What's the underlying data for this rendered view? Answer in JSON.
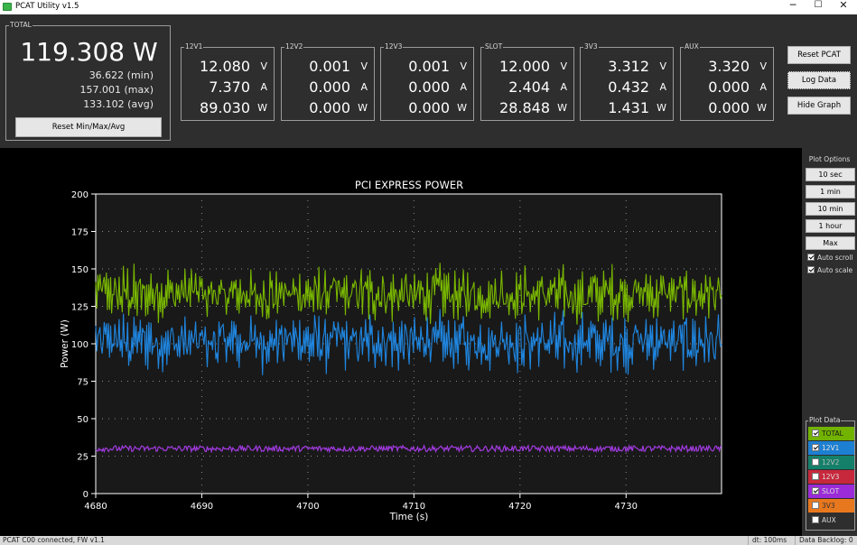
{
  "window": {
    "title": "PCAT Utility v1.5",
    "minimize": "─",
    "maximize": "☐",
    "close": "✕",
    "icon": "pcat-app-icon"
  },
  "total": {
    "label": "TOTAL",
    "value": "119.308 W",
    "min": "36.622 (min)",
    "max": "157.001 (max)",
    "avg": "133.102 (avg)",
    "reset_label": "Reset Min/Max/Avg"
  },
  "rails": [
    {
      "name": "12V1",
      "volts": "12.080",
      "amps": "7.370",
      "watts": "89.030"
    },
    {
      "name": "12V2",
      "volts": "0.001",
      "amps": "0.000",
      "watts": "0.000"
    },
    {
      "name": "12V3",
      "volts": "0.001",
      "amps": "0.000",
      "watts": "0.000"
    },
    {
      "name": "SLOT",
      "volts": "12.000",
      "amps": "2.404",
      "watts": "28.848"
    },
    {
      "name": "3V3",
      "volts": "3.312",
      "amps": "0.432",
      "watts": "1.431"
    },
    {
      "name": "AUX",
      "volts": "3.320",
      "amps": "0.000",
      "watts": "0.000"
    }
  ],
  "units": {
    "v": "V",
    "a": "A",
    "w": "W"
  },
  "buttons": {
    "reset_pcat": "Reset PCAT",
    "log_data": "Log Data",
    "hide_graph": "Hide Graph"
  },
  "plot_options": {
    "label": "Plot Options",
    "ranges": [
      "10 sec",
      "1 min",
      "10 min",
      "1 hour",
      "Max"
    ],
    "auto_scroll": {
      "label": "Auto scroll",
      "checked": true
    },
    "auto_scale": {
      "label": "Auto scale",
      "checked": true
    }
  },
  "plot_data": {
    "label": "Plot Data",
    "series": [
      {
        "name": "TOTAL",
        "checked": true,
        "color": "#72b300"
      },
      {
        "name": "12V1",
        "checked": true,
        "color": "#1d7fd1"
      },
      {
        "name": "12V2",
        "checked": false,
        "color": "#14806a"
      },
      {
        "name": "12V3",
        "checked": false,
        "color": "#c8283c"
      },
      {
        "name": "SLOT",
        "checked": true,
        "color": "#9b2bd8"
      },
      {
        "name": "3V3",
        "checked": false,
        "color": "#e8781e"
      },
      {
        "name": "AUX",
        "checked": false,
        "color": "#2e2e2e"
      }
    ]
  },
  "status": {
    "left": "PCAT C00 connected, FW v1.1",
    "dt": "dt: 100ms",
    "backlog": "Data Backlog: 0"
  },
  "chart_data": {
    "type": "line",
    "title": "PCI EXPRESS POWER",
    "xlabel": "Time (s)",
    "ylabel": "Power (W)",
    "xlim": [
      4680,
      4739
    ],
    "ylim": [
      0,
      200
    ],
    "xticks": [
      4680,
      4690,
      4700,
      4710,
      4720,
      4730
    ],
    "yticks": [
      0,
      25,
      50,
      75,
      100,
      125,
      150,
      175,
      200
    ],
    "grid": true,
    "series": [
      {
        "name": "TOTAL",
        "color": "#7ab800",
        "mean": 133,
        "min": 112,
        "max": 156
      },
      {
        "name": "12V1",
        "color": "#1f86e0",
        "mean": 101,
        "min": 79,
        "max": 125
      },
      {
        "name": "SLOT",
        "color": "#a23ae0",
        "mean": 30,
        "min": 28,
        "max": 32
      }
    ]
  }
}
